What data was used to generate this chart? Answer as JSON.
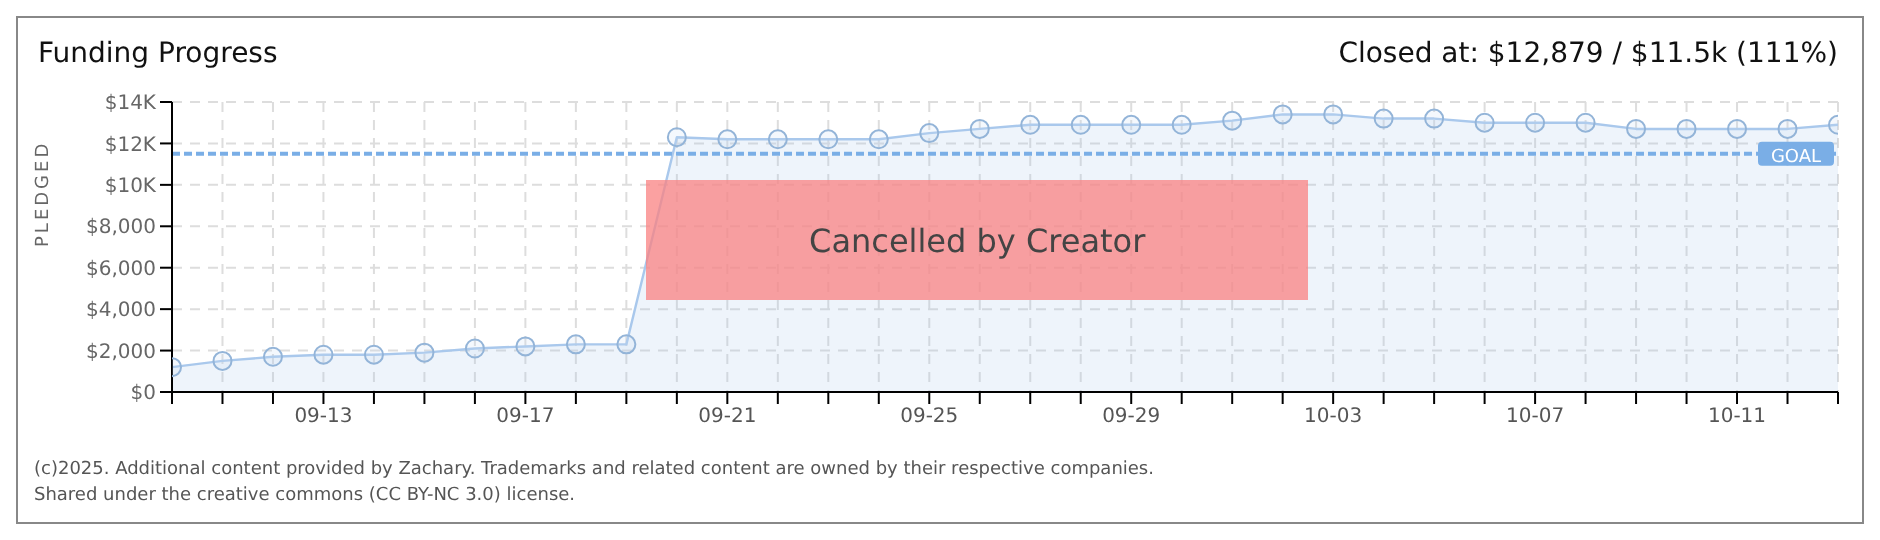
{
  "chart_data": {
    "type": "area",
    "title": "Funding Progress",
    "subtitle": "Closed at:  $12,879 / $11.5k (111%)",
    "ylabel": "PLEDGED",
    "categories": [
      null,
      null,
      null,
      "09-13",
      null,
      null,
      null,
      "09-17",
      null,
      null,
      null,
      "09-21",
      null,
      null,
      null,
      "09-25",
      null,
      null,
      null,
      "09-29",
      null,
      null,
      null,
      "10-03",
      null,
      null,
      null,
      "10-07",
      null,
      null,
      null,
      "10-11",
      null,
      null
    ],
    "series": [
      {
        "color": "#a9c8ec",
        "values": [
          1200,
          1500,
          1700,
          1800,
          1800,
          1900,
          2100,
          2200,
          2300,
          2300,
          12300,
          12200,
          12200,
          12200,
          12200,
          12500,
          12700,
          12900,
          12900,
          12900,
          12900,
          13100,
          13400,
          13400,
          13200,
          13200,
          13000,
          13000,
          13000,
          12700,
          12700,
          12700,
          12700,
          12900
        ]
      }
    ],
    "ylim": [
      0,
      14000
    ],
    "yticks": [
      {
        "value": 0,
        "label": "$0"
      },
      {
        "value": 2000,
        "label": "$2,000"
      },
      {
        "value": 4000,
        "label": "$4,000"
      },
      {
        "value": 6000,
        "label": "$6,000"
      },
      {
        "value": 8000,
        "label": "$8,000"
      },
      {
        "value": 10000,
        "label": "$10K"
      },
      {
        "value": 12000,
        "label": "$12K"
      },
      {
        "value": 14000,
        "label": "$14K"
      }
    ],
    "ref_lines": [
      {
        "axis": "y",
        "value": 11500,
        "label": "GOAL",
        "color": "#7aaee6",
        "line_style": "dashed"
      }
    ],
    "annotations": [
      "Cancelled by Creator",
      "(c)2025. Additional content provided by Zachary. Trademarks and related content are owned by their respective companies.",
      "Shared under the creative commons (CC BY-NC 3.0) license."
    ],
    "grid": true,
    "marker": "circle"
  }
}
